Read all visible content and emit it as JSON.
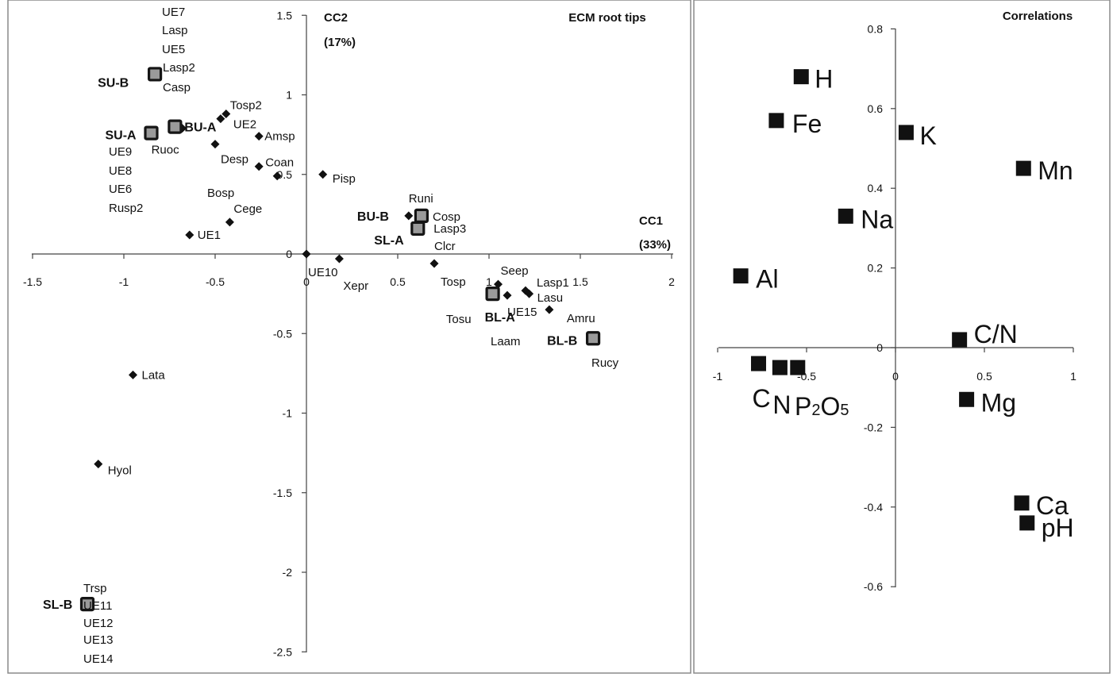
{
  "chart_data": [
    {
      "type": "scatter",
      "title": "ECM root tips",
      "xlabel": "CC1",
      "xlabel_pct": "(33%)",
      "ylabel": "CC2",
      "ylabel_pct": "(17%)",
      "xlim": [
        -1.5,
        2
      ],
      "ylim": [
        -2.5,
        1.5
      ],
      "xticks": [
        "-1.5",
        "-1",
        "-0.5",
        "0",
        "0.5",
        "1",
        "1.5",
        "2"
      ],
      "yticks": [
        "1.5",
        "1",
        "0.5",
        "0",
        "-0.5",
        "-1",
        "-1.5",
        "-2",
        "-2.5"
      ],
      "species": [
        {
          "label": "Tosp2",
          "x": -0.44,
          "y": 0.88
        },
        {
          "label": "UE2",
          "x": -0.47,
          "y": 0.85
        },
        {
          "label": "Amsp",
          "x": -0.26,
          "y": 0.74
        },
        {
          "label": "Ruoc",
          "x": -0.68,
          "y": 0.79
        },
        {
          "label": "Desp",
          "x": -0.5,
          "y": 0.69
        },
        {
          "label": "Coan",
          "x": -0.26,
          "y": 0.55
        },
        {
          "label": "Bosp",
          "x": -0.16,
          "y": 0.49
        },
        {
          "label": "Pisp",
          "x": 0.09,
          "y": 0.5
        },
        {
          "label": "Cege",
          "x": -0.42,
          "y": 0.2
        },
        {
          "label": "UE1",
          "x": -0.64,
          "y": 0.12
        },
        {
          "label": "UE10",
          "x": 0.0,
          "y": 0.0
        },
        {
          "label": "Xepr",
          "x": 0.18,
          "y": -0.03
        },
        {
          "label": "Runi",
          "x": 0.56,
          "y": 0.24
        },
        {
          "label": "Lasp3",
          "x": 0.61,
          "y": 0.18
        },
        {
          "label": "Tosp",
          "x": 0.7,
          "y": -0.06
        },
        {
          "label": "Seep",
          "x": 1.05,
          "y": -0.19
        },
        {
          "label": "Tosu",
          "x": 1.02,
          "y": -0.26
        },
        {
          "label": "UE15",
          "x": 1.1,
          "y": -0.26
        },
        {
          "label": "Lasp1",
          "x": 1.2,
          "y": -0.23
        },
        {
          "label": "Lasu",
          "x": 1.22,
          "y": -0.25
        },
        {
          "label": "Amru",
          "x": 1.33,
          "y": -0.35
        },
        {
          "label": "Lata",
          "x": -0.95,
          "y": -0.76
        },
        {
          "label": "Hyol",
          "x": -1.14,
          "y": -1.32
        }
      ],
      "sites": [
        {
          "label": "SU-B",
          "x": -0.83,
          "y": 1.13
        },
        {
          "label": "SU-A",
          "x": -0.85,
          "y": 0.76
        },
        {
          "label": "BU-A",
          "x": -0.72,
          "y": 0.8
        },
        {
          "label": "BU-B",
          "x": 0.63,
          "y": 0.24
        },
        {
          "label": "SL-A",
          "x": 0.61,
          "y": 0.16
        },
        {
          "label": "BL-A",
          "x": 1.02,
          "y": -0.25
        },
        {
          "label": "BL-B",
          "x": 1.57,
          "y": -0.53
        },
        {
          "label": "SL-B",
          "x": -1.2,
          "y": -2.2
        }
      ],
      "text_annotations": [
        {
          "label": "UE7"
        },
        {
          "label": "Lasp"
        },
        {
          "label": "UE5"
        },
        {
          "label": "Lasp2"
        },
        {
          "label": "Casp"
        },
        {
          "label": "UE9"
        },
        {
          "label": "UE8"
        },
        {
          "label": "UE6"
        },
        {
          "label": "Rusp2"
        },
        {
          "label": "Cosp"
        },
        {
          "label": "Clcr"
        },
        {
          "label": "Laam"
        },
        {
          "label": "Rucy"
        },
        {
          "label": "Trsp"
        },
        {
          "label": "UE11"
        },
        {
          "label": "UE12"
        },
        {
          "label": "UE13"
        },
        {
          "label": "UE14"
        }
      ],
      "grid": false,
      "legend": "none"
    },
    {
      "type": "scatter",
      "title": "Correlations",
      "xlim": [
        -1,
        1
      ],
      "ylim": [
        -0.6,
        0.8
      ],
      "xticks": [
        "-1",
        "-0.5",
        "0",
        "0.5",
        "1"
      ],
      "yticks": [
        "0.8",
        "0.6",
        "0.4",
        "0.2",
        "0",
        "-0.2",
        "-0.4",
        "-0.6"
      ],
      "points": [
        {
          "label": "H",
          "x": -0.53,
          "y": 0.68
        },
        {
          "label": "Fe",
          "x": -0.67,
          "y": 0.57
        },
        {
          "label": "K",
          "x": 0.06,
          "y": 0.54
        },
        {
          "label": "Mn",
          "x": 0.72,
          "y": 0.45
        },
        {
          "label": "Na",
          "x": -0.28,
          "y": 0.33
        },
        {
          "label": "Al",
          "x": -0.87,
          "y": 0.18
        },
        {
          "label": "C/N",
          "x": 0.36,
          "y": 0.02
        },
        {
          "label": "C",
          "x": -0.77,
          "y": -0.04
        },
        {
          "label": "N",
          "x": -0.65,
          "y": -0.05
        },
        {
          "label": "P2O5",
          "x": -0.55,
          "y": -0.05
        },
        {
          "label": "Mg",
          "x": 0.4,
          "y": -0.13
        },
        {
          "label": "Ca",
          "x": 0.71,
          "y": -0.39
        },
        {
          "label": "pH",
          "x": 0.74,
          "y": -0.44
        }
      ],
      "p2o5_parts": [
        "P",
        "2",
        "O",
        "5"
      ],
      "grid": false,
      "legend": "none"
    }
  ]
}
